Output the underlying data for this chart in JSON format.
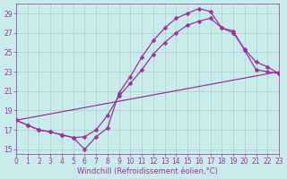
{
  "bg_color": "#c8ecec",
  "grid_color": "#aacccc",
  "line_color": "#993399",
  "xlim": [
    0,
    23
  ],
  "ylim": [
    14.5,
    30.0
  ],
  "xticks": [
    0,
    1,
    2,
    3,
    4,
    5,
    6,
    7,
    8,
    9,
    10,
    11,
    12,
    13,
    14,
    15,
    16,
    17,
    18,
    19,
    20,
    21,
    22,
    23
  ],
  "yticks": [
    15,
    17,
    19,
    21,
    23,
    25,
    27,
    29
  ],
  "xlabel": "Windchill (Refroidissement éolien,°C)",
  "curve1_x": [
    0,
    1,
    2,
    3,
    4,
    5,
    6,
    7,
    8,
    9,
    10,
    11,
    12,
    13,
    14,
    15,
    16,
    17,
    18,
    19,
    20,
    21,
    22,
    23
  ],
  "curve1_y": [
    18.0,
    17.5,
    17.0,
    16.8,
    16.5,
    16.2,
    15.0,
    16.3,
    17.2,
    20.8,
    22.5,
    24.5,
    26.2,
    27.5,
    28.5,
    29.0,
    29.5,
    29.2,
    27.5,
    27.2,
    25.2,
    23.2,
    23.0,
    22.8
  ],
  "curve2_x": [
    0,
    1,
    2,
    3,
    4,
    5,
    6,
    7,
    8,
    9,
    10,
    11,
    12,
    13,
    14,
    15,
    16,
    17,
    18,
    19,
    20,
    21,
    22,
    23
  ],
  "curve2_y": [
    18.0,
    17.5,
    17.0,
    16.8,
    16.5,
    16.2,
    16.3,
    17.0,
    18.5,
    20.5,
    21.8,
    23.2,
    24.8,
    26.0,
    27.0,
    27.8,
    28.2,
    28.5,
    27.5,
    27.0,
    25.3,
    24.0,
    23.5,
    22.8
  ],
  "curve3_x": [
    0,
    23
  ],
  "curve3_y": [
    18.0,
    23.0
  ],
  "markersize": 2.5,
  "linewidth": 0.9,
  "tick_fontsize": 5.5,
  "xlabel_fontsize": 6.0
}
